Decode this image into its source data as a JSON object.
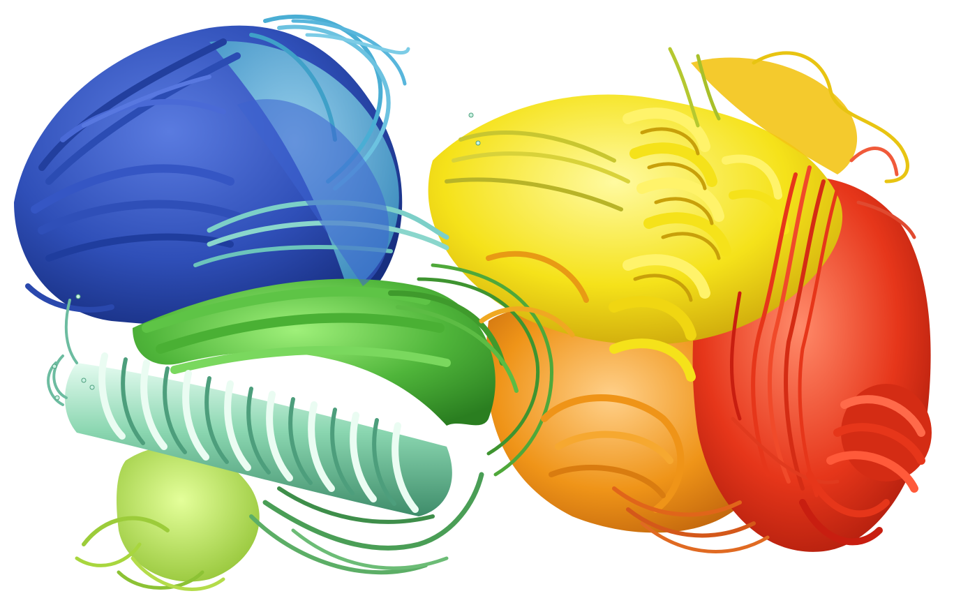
{
  "image": {
    "background_color": "#ffffff",
    "palette": {
      "blue_dark": "#1f3d9e",
      "blue": "#3556c4",
      "sky": "#5cb8d8",
      "teal": "#86d2c4",
      "mint": "#8ad6b0",
      "green": "#4fb53a",
      "green_light": "#86e06a",
      "lime": "#b5e05a",
      "olive": "#c8c630",
      "yellow": "#f5e21a",
      "gold": "#f3c416",
      "orange": "#ef9418",
      "orange_dark": "#e0651a",
      "red": "#e6361a",
      "red_dark": "#c81e10"
    }
  }
}
